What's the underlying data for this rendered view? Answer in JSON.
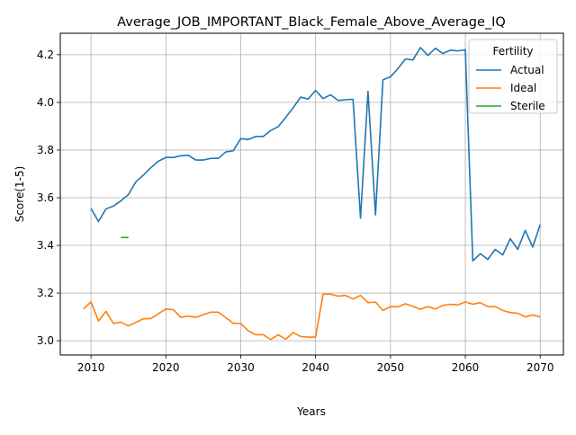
{
  "chart_data": {
    "type": "line",
    "title": "Average_JOB_IMPORTANT_Black_Female_Above_Average_IQ",
    "xlabel": "Years",
    "ylabel": "Score(1-5)",
    "xlim": [
      2005.9,
      2073.1
    ],
    "ylim": [
      2.94,
      4.29
    ],
    "xticks": [
      2010,
      2020,
      2030,
      2040,
      2050,
      2060,
      2070
    ],
    "yticks": [
      3.0,
      3.2,
      3.4,
      3.6,
      3.8,
      4.0,
      4.2
    ],
    "ytick_labels": [
      "3.0",
      "3.2",
      "3.4",
      "3.6",
      "3.8",
      "4.0",
      "4.2"
    ],
    "grid": true,
    "legend": {
      "title": "Fertility",
      "placement": "top-right"
    },
    "series": [
      {
        "name": "Actual",
        "color": "#1f77b4",
        "x": [
          2010,
          2011,
          2012,
          2013,
          2014,
          2015,
          2016,
          2017,
          2018,
          2019,
          2020,
          2021,
          2022,
          2023,
          2024,
          2025,
          2026,
          2027,
          2028,
          2029,
          2030,
          2031,
          2032,
          2033,
          2034,
          2035,
          2036,
          2037,
          2038,
          2039,
          2040,
          2041,
          2042,
          2043,
          2044,
          2045,
          2046,
          2047,
          2048,
          2049,
          2050,
          2051,
          2052,
          2053,
          2054,
          2055,
          2056,
          2057,
          2058,
          2059,
          2060,
          2061,
          2062,
          2063,
          2064,
          2065,
          2066,
          2067,
          2068,
          2069,
          2070
        ],
        "y": [
          3.555,
          3.5,
          3.553,
          3.565,
          3.587,
          3.613,
          3.667,
          3.695,
          3.726,
          3.753,
          3.769,
          3.769,
          3.776,
          3.778,
          3.758,
          3.758,
          3.765,
          3.765,
          3.792,
          3.797,
          3.848,
          3.844,
          3.857,
          3.857,
          3.882,
          3.898,
          3.937,
          3.977,
          4.022,
          4.014,
          4.05,
          4.016,
          4.032,
          4.008,
          4.011,
          4.013,
          3.514,
          4.046,
          3.528,
          4.095,
          4.107,
          4.142,
          4.182,
          4.178,
          4.23,
          4.197,
          4.227,
          4.205,
          4.219,
          4.216,
          4.221,
          3.335,
          3.365,
          3.341,
          3.383,
          3.36,
          3.428,
          3.383,
          3.463,
          3.393,
          3.487
        ]
      },
      {
        "name": "Ideal",
        "color": "#ff7f0e",
        "x": [
          2009,
          2010,
          2011,
          2012,
          2013,
          2014,
          2015,
          2016,
          2017,
          2018,
          2019,
          2020,
          2021,
          2022,
          2023,
          2024,
          2025,
          2026,
          2027,
          2028,
          2029,
          2030,
          2031,
          2032,
          2033,
          2034,
          2035,
          2036,
          2037,
          2038,
          2039,
          2040,
          2041,
          2042,
          2043,
          2044,
          2045,
          2046,
          2047,
          2048,
          2049,
          2050,
          2051,
          2052,
          2053,
          2054,
          2055,
          2056,
          2057,
          2058,
          2059,
          2060,
          2061,
          2062,
          2063,
          2064,
          2065,
          2066,
          2067,
          2068,
          2069,
          2070
        ],
        "y": [
          3.133,
          3.163,
          3.083,
          3.123,
          3.072,
          3.078,
          3.062,
          3.077,
          3.092,
          3.093,
          3.113,
          3.133,
          3.13,
          3.098,
          3.103,
          3.098,
          3.109,
          3.12,
          3.12,
          3.097,
          3.073,
          3.072,
          3.042,
          3.025,
          3.025,
          3.005,
          3.025,
          3.006,
          3.034,
          3.018,
          3.015,
          3.015,
          3.195,
          3.195,
          3.187,
          3.19,
          3.175,
          3.19,
          3.16,
          3.162,
          3.127,
          3.143,
          3.142,
          3.155,
          3.144,
          3.132,
          3.143,
          3.133,
          3.148,
          3.153,
          3.15,
          3.163,
          3.153,
          3.16,
          3.143,
          3.143,
          3.127,
          3.118,
          3.115,
          3.1,
          3.108,
          3.1
        ]
      },
      {
        "name": "Sterile",
        "color": "#2ca02c",
        "x": [
          2014,
          2015
        ],
        "y": [
          3.433,
          3.433
        ]
      }
    ]
  }
}
